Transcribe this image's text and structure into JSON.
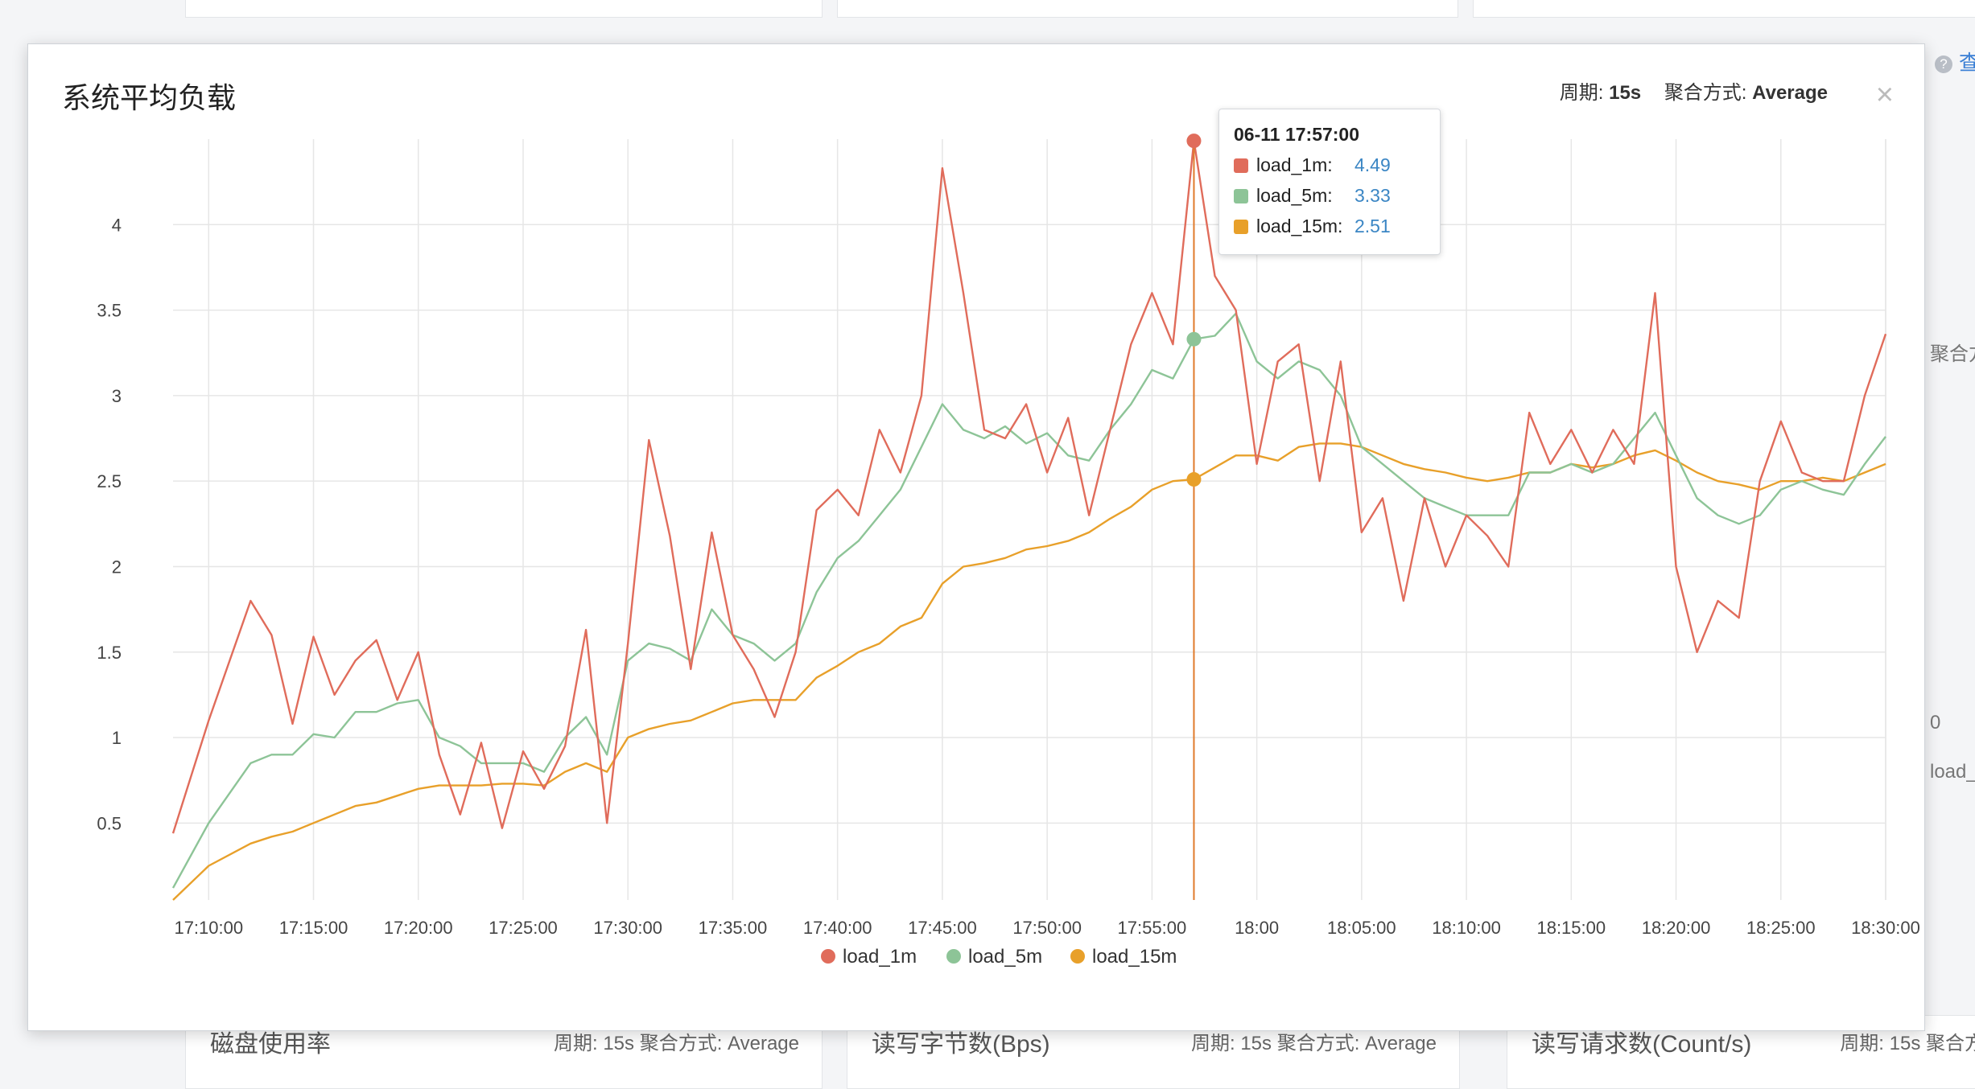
{
  "modal": {
    "title": "系统平均负载",
    "period_label": "周期:",
    "period_value": "15s",
    "agg_label": "聚合方式:",
    "agg_value": "Average",
    "close_label": "×"
  },
  "background": {
    "cards": [
      {
        "title": "磁盘使用率",
        "meta": "周期: 15s   聚合方式: Average"
      },
      {
        "title": "读写字节数(Bps)",
        "meta": "周期: 15s   聚合方式: Average"
      },
      {
        "title": "读写请求数(Count/s)",
        "meta": "周期: 15s   聚合方"
      }
    ],
    "help_label": "查",
    "side_agg": "聚合方",
    "side_zero": "0",
    "side_legend": "load_"
  },
  "tooltip": {
    "time": "06-11 17:57:00",
    "rows": [
      {
        "name": "load_1m:",
        "value": "4.49",
        "color": "#e06c5b"
      },
      {
        "name": "load_5m:",
        "value": "3.33",
        "color": "#8dc497"
      },
      {
        "name": "load_15m:",
        "value": "2.51",
        "color": "#e8a02a"
      }
    ]
  },
  "chart_data": {
    "type": "line",
    "x_ticks": [
      "17:10:00",
      "17:15:00",
      "17:20:00",
      "17:25:00",
      "17:30:00",
      "17:35:00",
      "17:40:00",
      "17:45:00",
      "17:50:00",
      "17:55:00",
      "18:00",
      "18:05:00",
      "18:10:00",
      "18:15:00",
      "18:20:00",
      "18:25:00",
      "18:30:00"
    ],
    "xlim_minutes": [
      -1.7,
      80
    ],
    "y_ticks": [
      "0.5",
      "1",
      "1.5",
      "2",
      "2.5",
      "3",
      "3.5",
      "4"
    ],
    "ylim": [
      0.05,
      4.5
    ],
    "hover_minute": 47,
    "x_minutes": [
      -1.7,
      0,
      2,
      3,
      4,
      5,
      6,
      7,
      8,
      9,
      10,
      11,
      12,
      13,
      14,
      15,
      16,
      17,
      18,
      19,
      20,
      21,
      22,
      23,
      24,
      25,
      26,
      27,
      28,
      29,
      30,
      31,
      32,
      33,
      34,
      35,
      36,
      37,
      38,
      39,
      40,
      41,
      42,
      43,
      44,
      45,
      46,
      47,
      48,
      49,
      50,
      51,
      52,
      53,
      54,
      55,
      56,
      57,
      58,
      59,
      60,
      61,
      62,
      63,
      64,
      65,
      66,
      67,
      68,
      69,
      70,
      71,
      72,
      73,
      74,
      75,
      76,
      77,
      78,
      79,
      80
    ],
    "series": [
      {
        "name": "load_1m",
        "color": "#e06c5b",
        "values": [
          0.44,
          1.1,
          1.8,
          1.6,
          1.08,
          1.59,
          1.25,
          1.45,
          1.57,
          1.22,
          1.5,
          0.9,
          0.55,
          0.97,
          0.47,
          0.92,
          0.7,
          0.95,
          1.63,
          0.5,
          1.55,
          2.74,
          2.18,
          1.4,
          2.2,
          1.6,
          1.4,
          1.12,
          1.5,
          2.33,
          2.45,
          2.3,
          2.8,
          2.55,
          3.0,
          4.33,
          3.6,
          2.8,
          2.75,
          2.95,
          2.55,
          2.87,
          2.3,
          2.8,
          3.3,
          3.6,
          3.3,
          4.49,
          3.7,
          3.5,
          2.6,
          3.2,
          3.3,
          2.5,
          3.2,
          2.2,
          2.4,
          1.8,
          2.4,
          2.0,
          2.3,
          2.18,
          2.0,
          2.9,
          2.6,
          2.8,
          2.55,
          2.8,
          2.6,
          3.6,
          2.0,
          1.5,
          1.8,
          1.7,
          2.5,
          2.85,
          2.55,
          2.5,
          2.5,
          3.0,
          3.36
        ]
      },
      {
        "name": "load_5m",
        "color": "#8dc497",
        "values": [
          0.12,
          0.5,
          0.85,
          0.9,
          0.9,
          1.02,
          1.0,
          1.15,
          1.15,
          1.2,
          1.22,
          1.0,
          0.95,
          0.85,
          0.85,
          0.85,
          0.8,
          1.0,
          1.12,
          0.9,
          1.45,
          1.55,
          1.52,
          1.45,
          1.75,
          1.6,
          1.55,
          1.45,
          1.55,
          1.85,
          2.05,
          2.15,
          2.3,
          2.45,
          2.7,
          2.95,
          2.8,
          2.75,
          2.82,
          2.72,
          2.78,
          2.65,
          2.62,
          2.8,
          2.95,
          3.15,
          3.1,
          3.33,
          3.35,
          3.48,
          3.2,
          3.1,
          3.2,
          3.15,
          3.0,
          2.7,
          2.6,
          2.5,
          2.4,
          2.35,
          2.3,
          2.3,
          2.3,
          2.55,
          2.55,
          2.6,
          2.55,
          2.6,
          2.75,
          2.9,
          2.65,
          2.4,
          2.3,
          2.25,
          2.3,
          2.45,
          2.5,
          2.45,
          2.42,
          2.6,
          2.76
        ]
      },
      {
        "name": "load_15m",
        "color": "#e8a02a",
        "values": [
          0.05,
          0.25,
          0.38,
          0.42,
          0.45,
          0.5,
          0.55,
          0.6,
          0.62,
          0.66,
          0.7,
          0.72,
          0.72,
          0.72,
          0.73,
          0.73,
          0.72,
          0.8,
          0.85,
          0.8,
          1.0,
          1.05,
          1.08,
          1.1,
          1.15,
          1.2,
          1.22,
          1.22,
          1.22,
          1.35,
          1.42,
          1.5,
          1.55,
          1.65,
          1.7,
          1.9,
          2.0,
          2.02,
          2.05,
          2.1,
          2.12,
          2.15,
          2.2,
          2.28,
          2.35,
          2.45,
          2.5,
          2.51,
          2.58,
          2.65,
          2.65,
          2.62,
          2.7,
          2.72,
          2.72,
          2.7,
          2.65,
          2.6,
          2.57,
          2.55,
          2.52,
          2.5,
          2.52,
          2.55,
          2.55,
          2.6,
          2.58,
          2.6,
          2.65,
          2.68,
          2.62,
          2.55,
          2.5,
          2.48,
          2.45,
          2.5,
          2.5,
          2.52,
          2.5,
          2.55,
          2.6
        ]
      }
    ],
    "legend": [
      "load_1m",
      "load_5m",
      "load_15m"
    ]
  }
}
